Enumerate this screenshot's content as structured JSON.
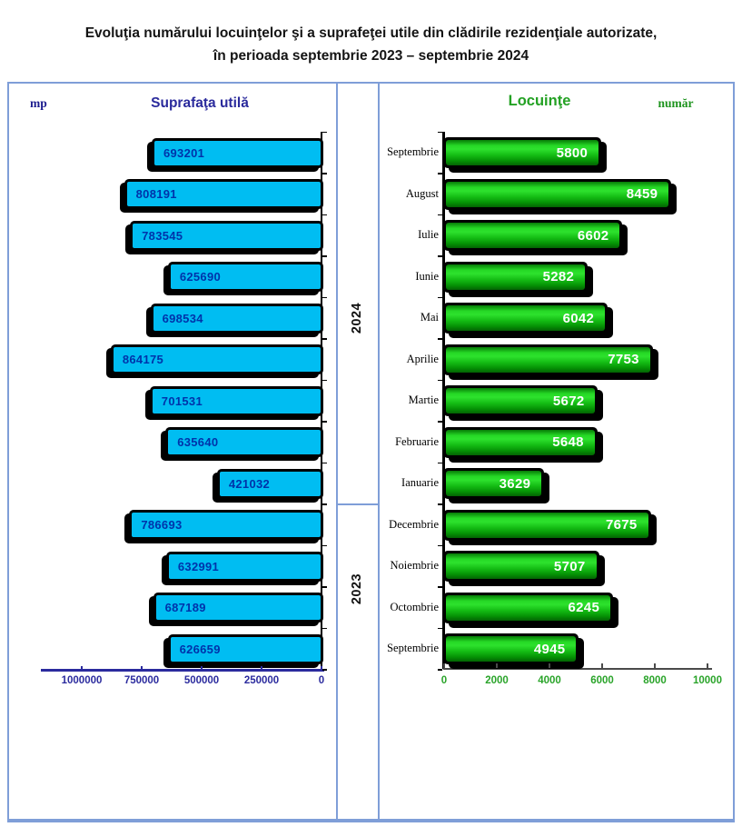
{
  "title": {
    "line1": "Evoluţia numărului locuinţelor şi a suprafeţei utile din clădirile rezidenţiale autorizate,",
    "line2": "în perioada septembrie 2023 – septembrie 2024"
  },
  "left_chart": {
    "title": "Suprafaţa utilă",
    "unit": "mp"
  },
  "right_chart": {
    "title": "Locuinţe",
    "unit": "număr"
  },
  "middle": {
    "top_year": "2024",
    "bottom_year": "2023"
  },
  "year_groups": [
    {
      "year": "2024",
      "months_count": 9
    },
    {
      "year": "2023",
      "months_count": 4
    }
  ],
  "colors": {
    "bar_cyan": "#00bdf2",
    "bar_green_top": "#2ee22e",
    "bar_green_bottom": "#036303",
    "navy_text": "#2a2a9c",
    "green_text": "#23a123",
    "panel_border": "#7f9ed8",
    "left_value_label": "#0033aa",
    "right_value_label": "#ffffff"
  },
  "chart_data": [
    {
      "type": "bar",
      "orientation": "horizontal-left",
      "title": "Suprafaţa utilă",
      "unit": "mp",
      "categories": [
        "Septembrie",
        "August",
        "Iulie",
        "Iunie",
        "Mai",
        "Aprilie",
        "Martie",
        "Februarie",
        "Ianuarie",
        "Decembrie",
        "Noiembrie",
        "Octombrie",
        "Septembrie"
      ],
      "values": [
        693201,
        808191,
        783545,
        625690,
        698534,
        864175,
        701531,
        635640,
        421032,
        786693,
        632991,
        687189,
        626659
      ],
      "xticks": [
        1000000,
        750000,
        500000,
        250000,
        0
      ],
      "xlim": [
        0,
        1000000
      ],
      "grid": false,
      "legend": "none"
    },
    {
      "type": "bar",
      "orientation": "horizontal-right",
      "title": "Locuinţe",
      "unit": "număr",
      "categories": [
        "Septembrie",
        "August",
        "Iulie",
        "Iunie",
        "Mai",
        "Aprilie",
        "Martie",
        "Februarie",
        "Ianuarie",
        "Decembrie",
        "Noiembrie",
        "Octombrie",
        "Septembrie"
      ],
      "values": [
        5800,
        8459,
        6602,
        5282,
        6042,
        7753,
        5672,
        5648,
        3629,
        7675,
        5707,
        6245,
        4945
      ],
      "xticks": [
        0,
        2000,
        4000,
        6000,
        8000,
        10000
      ],
      "xlim": [
        0,
        10000
      ],
      "grid": false,
      "legend": "none"
    }
  ]
}
